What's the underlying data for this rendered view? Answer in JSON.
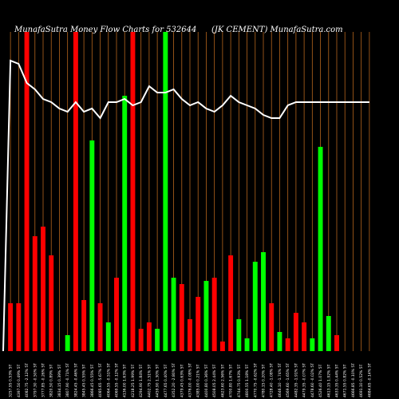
{
  "chart_data": {
    "type": "bar",
    "title_left": "MunafaSutra  Money  Flow  Charts for 532644",
    "title_right": "(JK CEMENT) MunafaSutra.com",
    "ylim": [
      0,
      100
    ],
    "bar_max": 100,
    "line_max": 100,
    "grid": "vertical",
    "colors": {
      "background": "#000000",
      "grid": "#b5651d",
      "up": "#00ff00",
      "down": "#ff0000",
      "line": "#ffffff"
    },
    "categories": [
      "3257.95 0.53% 5T",
      "4397.50 0.49% 5T",
      "4082.75 -2.12% 5T",
      "3797.30 -0.50% 5T",
      "3777.85 -0.26% 5T",
      "3820.50 0.89% 5T",
      "3834.15 0.39% 5T",
      "3807.90 -0.71% 5T",
      "3824.45 -0.46% 5T",
      "3845.45 0.55% 5T",
      "3866.45 0.55% 5T",
      "4085.65 -5.67% 5T",
      "4064.55 -0.51% 5T",
      "4069.55 -0.12% 5T",
      "4136.00 1.63% 5T",
      "4218.25 1.99% 5T",
      "4294.90 1.84% 5T",
      "4402.75 2.51% 5T",
      "4459.90 1.30% 5T",
      "4477.65 0.40% 5T",
      "4352.20 -2.80% 5T",
      "4379.45 0.63% 5T",
      "4376.00 -0.08% 5T",
      "4385.00 0.21% 5T",
      "4400.80 0.36% 5T",
      "4508.05 2.44% 5T",
      "4623.60 2.56% 5T",
      "4700.80 1.67% 5T",
      "4744.75 0.93% 5T",
      "4800.55 1.18% 5T",
      "4770.75 -0.62% 5T",
      "4780.15 0.20% 5T",
      "4728.40 -1.08% 5T",
      "4646.10 -1.74% 5T",
      "4569.60 -1.65% 5T",
      "4482.35 -1.91% 5T",
      "4479.35 -0.07% 5T",
      "4478.60 -0.02% 5T",
      "4526.40 1.07% 5T",
      "4613.15 1.92% 5T",
      "4633.35 0.44% 5T",
      "4671.55 0.82% 5T",
      "4666.85 -0.10% 5T",
      "4691.10 0.52% 5T",
      "4684.65 -0.14% 5T"
    ],
    "series": [
      {
        "values": [
          15,
          15,
          100,
          36,
          39,
          30,
          0,
          5,
          100,
          16,
          66,
          15,
          9,
          23,
          80,
          100,
          7,
          9,
          7,
          100,
          23,
          21,
          10,
          17,
          22,
          23,
          3,
          30,
          10,
          4,
          28,
          31,
          15,
          6,
          4,
          12,
          9,
          4,
          64,
          11,
          5,
          0,
          0,
          0,
          0
        ],
        "colors": [
          "down",
          "down",
          "down",
          "down",
          "down",
          "down",
          "up",
          "up",
          "down",
          "down",
          "up",
          "down",
          "up",
          "down",
          "up",
          "down",
          "down",
          "down",
          "up",
          "up",
          "up",
          "down",
          "down",
          "down",
          "up",
          "down",
          "down",
          "down",
          "up",
          "up",
          "up",
          "up",
          "down",
          "up",
          "down",
          "down",
          "down",
          "up",
          "up",
          "up",
          "down",
          "down",
          "down",
          "down",
          "down"
        ]
      },
      {
        "values": [
          91,
          90,
          84,
          82,
          79,
          78,
          76,
          75,
          78,
          75,
          76,
          73,
          78,
          78,
          79,
          77,
          78,
          83,
          81,
          81,
          82,
          79,
          77,
          78,
          76,
          75,
          77,
          80,
          78,
          77,
          76,
          74,
          73,
          73,
          77,
          78,
          78,
          78,
          78,
          78,
          78,
          78,
          78,
          78,
          78
        ]
      }
    ]
  }
}
